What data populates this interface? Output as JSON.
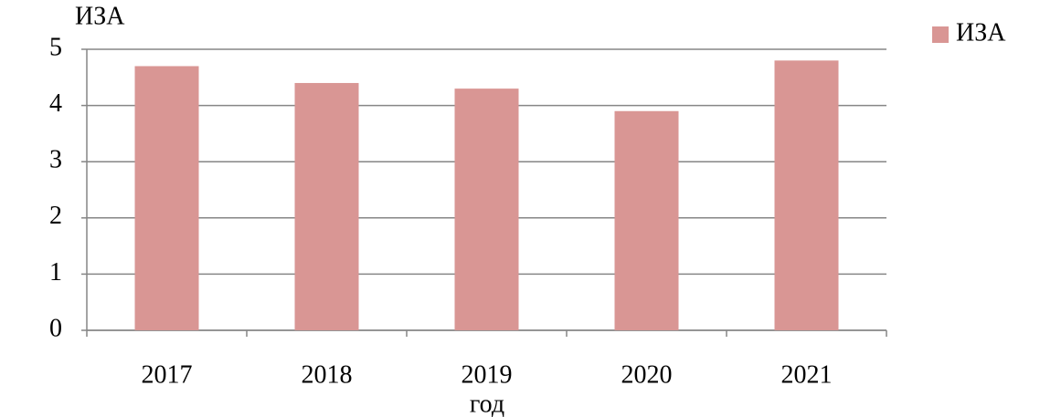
{
  "chart_data": {
    "type": "bar",
    "y_label": "ИЗА",
    "x_label": "год",
    "categories": [
      "2017",
      "2018",
      "2019",
      "2020",
      "2021"
    ],
    "series": [
      {
        "name": "ИЗА",
        "color": "#d99694",
        "values": [
          4.7,
          4.4,
          4.3,
          3.9,
          4.8
        ]
      }
    ],
    "ylim": [
      0,
      5
    ],
    "yticks": [
      0,
      1,
      2,
      3,
      4,
      5
    ],
    "grid": true,
    "legend": "right"
  }
}
